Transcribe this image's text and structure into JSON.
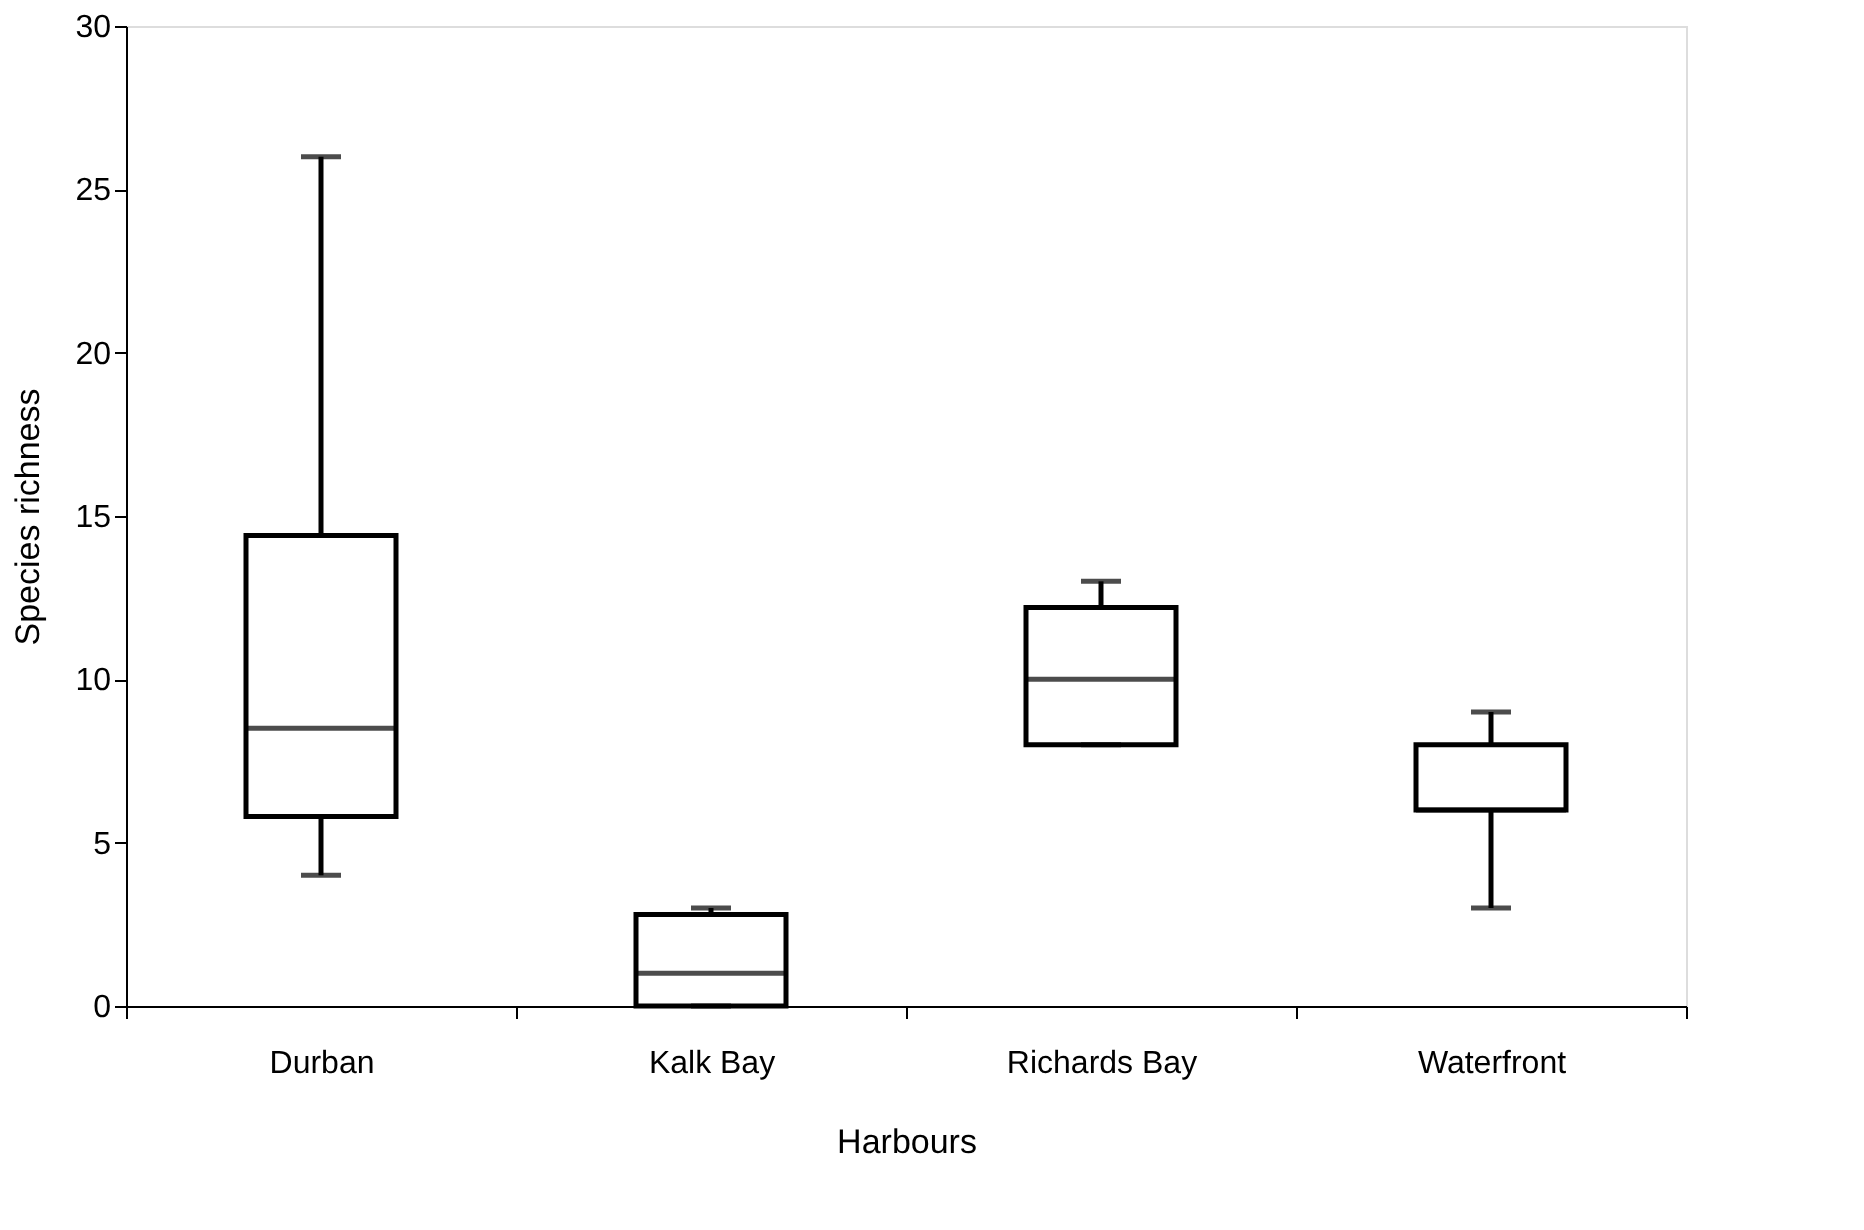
{
  "chart_data": {
    "type": "box",
    "xlabel": "Harbours",
    "ylabel": "Species richness",
    "categories": [
      "Durban",
      "Kalk Bay",
      "Richards Bay",
      "Waterfront"
    ],
    "boxes": [
      {
        "low": 4,
        "q1": 5.8,
        "median": 8.5,
        "q3": 14.4,
        "high": 26
      },
      {
        "low": 0,
        "q1": 0,
        "median": 1,
        "q3": 2.8,
        "high": 3
      },
      {
        "low": 8,
        "q1": 8,
        "median": 10,
        "q3": 12.2,
        "high": 13
      },
      {
        "low": 3,
        "q1": 6,
        "median": 6,
        "q3": 8,
        "high": 9
      }
    ],
    "ylim": [
      0,
      30
    ],
    "yticks": [
      0,
      5,
      10,
      15,
      20,
      25,
      30
    ],
    "grid": false
  }
}
